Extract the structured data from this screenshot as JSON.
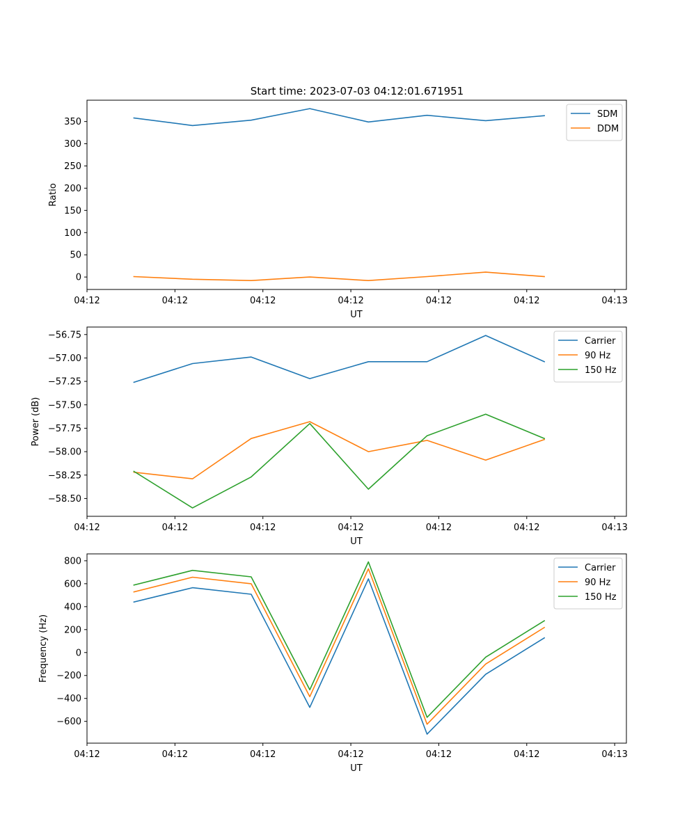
{
  "figure_title": "Start time: 2023-07-03 04:12:01.671951",
  "colors": {
    "blue": "#1f77b4",
    "orange": "#ff7f0e",
    "green": "#2ca02c"
  },
  "chart_data": [
    {
      "type": "line",
      "title": "Start time: 2023-07-03 04:12:01.671951",
      "xlabel": "UT",
      "ylabel": "Ratio",
      "x": [
        1,
        2,
        3,
        4,
        5,
        6,
        7,
        8
      ],
      "xlim": [
        0.2,
        9.4
      ],
      "x_ticks": [
        0.2,
        1.7,
        3.2,
        4.7,
        6.2,
        7.7,
        9.2
      ],
      "x_tick_labels": [
        "04:12",
        "04:12",
        "04:12",
        "04:12",
        "04:12",
        "04:12",
        "04:13"
      ],
      "ylim": [
        -28,
        398
      ],
      "y_ticks": [
        0,
        50,
        100,
        150,
        200,
        250,
        300,
        350
      ],
      "y_tick_labels": [
        "0",
        "50",
        "100",
        "150",
        "200",
        "250",
        "300",
        "350"
      ],
      "legend_position": "top-right",
      "series": [
        {
          "name": "SDM",
          "color": "#1f77b4",
          "values": [
            358,
            341,
            353,
            379,
            349,
            364,
            352,
            363
          ]
        },
        {
          "name": "DDM",
          "color": "#ff7f0e",
          "values": [
            1,
            -5,
            -8,
            0,
            -8,
            1,
            11,
            1
          ]
        }
      ]
    },
    {
      "type": "line",
      "title": "",
      "xlabel": "UT",
      "ylabel": "Power (dB)",
      "x": [
        1,
        2,
        3,
        4,
        5,
        6,
        7,
        8
      ],
      "xlim": [
        0.2,
        9.4
      ],
      "x_ticks": [
        0.2,
        1.7,
        3.2,
        4.7,
        6.2,
        7.7,
        9.2
      ],
      "x_tick_labels": [
        "04:12",
        "04:12",
        "04:12",
        "04:12",
        "04:12",
        "04:12",
        "04:13"
      ],
      "ylim": [
        -58.69,
        -56.67
      ],
      "y_ticks": [
        -58.5,
        -58.25,
        -58.0,
        -57.75,
        -57.5,
        -57.25,
        -57.0,
        -56.75
      ],
      "y_tick_labels": [
        "−58.50",
        "−58.25",
        "−58.00",
        "−57.75",
        "−57.50",
        "−57.25",
        "−57.00",
        "−56.75"
      ],
      "legend_position": "top-right",
      "series": [
        {
          "name": "Carrier",
          "color": "#1f77b4",
          "values": [
            -57.26,
            -57.06,
            -56.99,
            -57.22,
            -57.04,
            -57.04,
            -56.76,
            -57.04
          ]
        },
        {
          "name": "90 Hz",
          "color": "#ff7f0e",
          "values": [
            -58.22,
            -58.29,
            -57.86,
            -57.68,
            -58.0,
            -57.88,
            -58.09,
            -57.87
          ]
        },
        {
          "name": "150 Hz",
          "color": "#2ca02c",
          "values": [
            -58.21,
            -58.6,
            -58.27,
            -57.7,
            -58.4,
            -57.83,
            -57.6,
            -57.86
          ]
        }
      ]
    },
    {
      "type": "line",
      "title": "",
      "xlabel": "UT",
      "ylabel": "Frequency (Hz)",
      "x": [
        1,
        2,
        3,
        4,
        5,
        6,
        7,
        8
      ],
      "xlim": [
        0.2,
        9.4
      ],
      "x_ticks": [
        0.2,
        1.7,
        3.2,
        4.7,
        6.2,
        7.7,
        9.2
      ],
      "x_tick_labels": [
        "04:12",
        "04:12",
        "04:12",
        "04:12",
        "04:12",
        "04:12",
        "04:13"
      ],
      "ylim": [
        -790,
        860
      ],
      "y_ticks": [
        -600,
        -400,
        -200,
        0,
        200,
        400,
        600,
        800
      ],
      "y_tick_labels": [
        "−600",
        "−400",
        "−200",
        "0",
        "200",
        "400",
        "600",
        "800"
      ],
      "legend_position": "top-right",
      "series": [
        {
          "name": "Carrier",
          "color": "#1f77b4",
          "values": [
            440,
            565,
            508,
            -478,
            642,
            -712,
            -190,
            128
          ]
        },
        {
          "name": "90 Hz",
          "color": "#ff7f0e",
          "values": [
            528,
            657,
            600,
            -385,
            730,
            -625,
            -100,
            218
          ]
        },
        {
          "name": "150 Hz",
          "color": "#2ca02c",
          "values": [
            588,
            716,
            660,
            -325,
            790,
            -565,
            -40,
            277
          ]
        }
      ]
    }
  ]
}
